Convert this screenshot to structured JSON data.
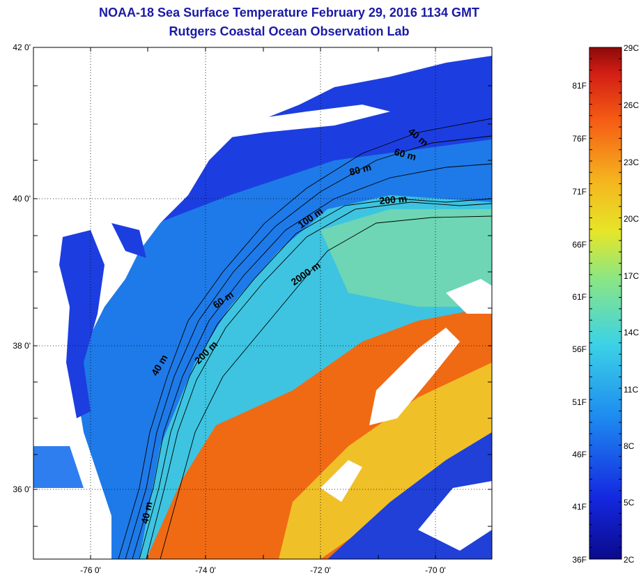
{
  "header": {
    "title": "NOAA-18 Sea Surface Temperature February 29, 2016 1134 GMT",
    "subtitle": "Rutgers Coastal Ocean Observation Lab"
  },
  "map": {
    "lat_labels": [
      "42 0'",
      "40 0'",
      "38 0'",
      "36 0'"
    ],
    "lon_labels": [
      "-76 0'",
      "-74 0'",
      "-72 0'",
      "-70 0'"
    ],
    "isobath_labels": [
      "40 m",
      "60 m",
      "80 m",
      "200 m",
      "100 m",
      "2000 m",
      "60 m",
      "40 m",
      "200 m",
      "40 m"
    ]
  },
  "colorbar": {
    "celsius": [
      "29C",
      "26C",
      "23C",
      "20C",
      "17C",
      "14C",
      "11C",
      "8C",
      "5C",
      "2C"
    ],
    "fahrenheit": [
      "81F",
      "76F",
      "71F",
      "66F",
      "61F",
      "56F",
      "51F",
      "46F",
      "41F",
      "36F"
    ]
  },
  "colors": {
    "title": "#1a1aa6",
    "land": "#ffffff",
    "cold": "#1430d8",
    "shelf": "#1e78e6",
    "slope": "#3cc8e6",
    "warm": "#f06414",
    "gulfstream": "#f0b428"
  }
}
